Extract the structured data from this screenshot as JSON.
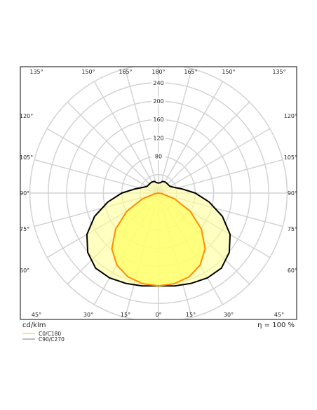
{
  "chart_data": {
    "type": "polar",
    "angle_labels_top": [
      "135°",
      "150°",
      "165°",
      "180°",
      "165°",
      "150°",
      "135°"
    ],
    "angle_labels_left": [
      "120°",
      "105°",
      "90°",
      "75°",
      "60°"
    ],
    "angle_labels_right": [
      "120°",
      "105°",
      "90°",
      "75°",
      "60°"
    ],
    "angle_labels_bottom": [
      "45°",
      "30°",
      "15°",
      "0°",
      "15°",
      "30°",
      "45°"
    ],
    "radial_ticks": [
      "80",
      "120",
      "160",
      "200",
      "240"
    ],
    "rmax": 240,
    "grid": true,
    "series": [
      {
        "name": "C0/C180",
        "color": "#ff8c00",
        "fill": "#ffff66",
        "intensity_by_angle_deg": [
          [
            0,
            202
          ],
          [
            10,
            200
          ],
          [
            20,
            194
          ],
          [
            30,
            181
          ],
          [
            40,
            158
          ],
          [
            50,
            122
          ],
          [
            60,
            80
          ],
          [
            70,
            38
          ],
          [
            80,
            8
          ],
          [
            90,
            0
          ]
        ]
      },
      {
        "name": "C90/C270",
        "color": "#000000",
        "fill": "#ffff99",
        "intensity_by_angle_deg": [
          [
            0,
            202
          ],
          [
            10,
            205
          ],
          [
            20,
            209
          ],
          [
            30,
            213
          ],
          [
            40,
            213
          ],
          [
            50,
            201
          ],
          [
            60,
            180
          ],
          [
            70,
            148
          ],
          [
            80,
            112
          ],
          [
            90,
            80
          ],
          [
            100,
            52
          ],
          [
            110,
            36
          ],
          [
            120,
            29
          ],
          [
            130,
            28
          ],
          [
            140,
            28
          ],
          [
            150,
            28
          ],
          [
            160,
            27
          ],
          [
            170,
            23
          ],
          [
            180,
            22
          ]
        ]
      }
    ]
  },
  "footer": {
    "unit_label": "cd/klm",
    "efficiency_label": "η = 100 %"
  },
  "legend": {
    "items": [
      {
        "label": "C0/C180",
        "color": "#ffd700"
      },
      {
        "label": "C90/C270",
        "color": "#999999"
      }
    ]
  }
}
